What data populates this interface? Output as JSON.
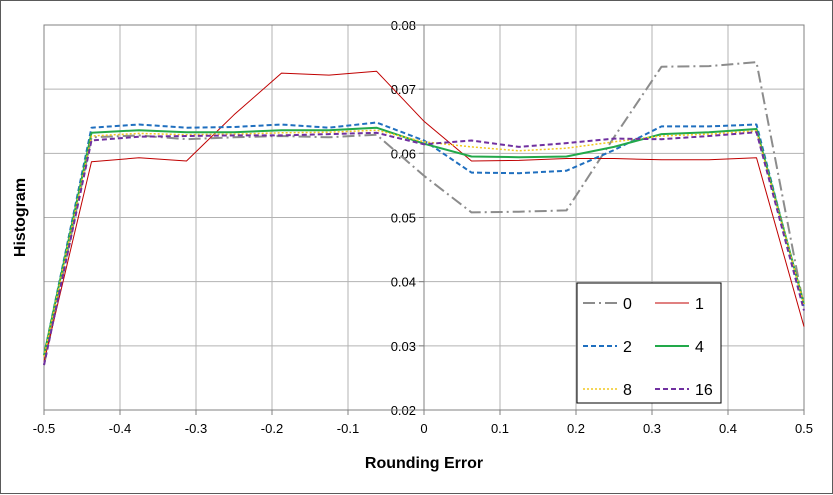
{
  "chart_data": {
    "type": "line",
    "title": "",
    "xlabel": "Rounding Error",
    "ylabel": "Histogram",
    "xlim": [
      -0.5,
      0.5
    ],
    "ylim": [
      0.02,
      0.08
    ],
    "x_ticks": [
      "-0.5",
      "-0.4",
      "-0.3",
      "-0.2",
      "-0.1",
      "0",
      "0.1",
      "0.2",
      "0.3",
      "0.4",
      "0.5"
    ],
    "y_ticks": [
      "0.02",
      "0.03",
      "0.04",
      "0.05",
      "0.06",
      "0.07",
      "0.08"
    ],
    "grid": true,
    "legend_position": "bottom-right",
    "x": [
      -0.5,
      -0.4375,
      -0.375,
      -0.3125,
      -0.25,
      -0.1875,
      -0.125,
      -0.0625,
      0.0,
      0.0625,
      0.125,
      0.1875,
      0.25,
      0.3125,
      0.375,
      0.4375,
      0.5
    ],
    "series": [
      {
        "name": "0",
        "color": "#8c8c8c",
        "style": "dashdot",
        "values": [
          0.027,
          0.0625,
          0.0628,
          0.0622,
          0.0625,
          0.0627,
          0.0625,
          0.0629,
          0.0565,
          0.0508,
          0.0509,
          0.0511,
          0.0625,
          0.0735,
          0.0736,
          0.0742,
          0.036
        ]
      },
      {
        "name": "1",
        "color": "#c00000",
        "style": "solid-thin",
        "values": [
          0.0275,
          0.0587,
          0.0593,
          0.0588,
          0.066,
          0.0725,
          0.0722,
          0.0728,
          0.065,
          0.0588,
          0.0589,
          0.0592,
          0.0592,
          0.059,
          0.059,
          0.0593,
          0.033
        ]
      },
      {
        "name": "2",
        "color": "#1f6fbf",
        "style": "dashed",
        "values": [
          0.0285,
          0.064,
          0.0645,
          0.064,
          0.0641,
          0.0645,
          0.064,
          0.0648,
          0.062,
          0.057,
          0.0569,
          0.0573,
          0.0605,
          0.0642,
          0.0642,
          0.0645,
          0.036
        ]
      },
      {
        "name": "4",
        "color": "#22a94a",
        "style": "solid",
        "values": [
          0.0285,
          0.0632,
          0.0636,
          0.0633,
          0.0633,
          0.0636,
          0.0636,
          0.064,
          0.0615,
          0.0595,
          0.0594,
          0.0595,
          0.061,
          0.063,
          0.0633,
          0.0638,
          0.0365
        ]
      },
      {
        "name": "8",
        "color": "#f2c81e",
        "style": "dotted",
        "values": [
          0.0283,
          0.0627,
          0.0631,
          0.0629,
          0.063,
          0.0632,
          0.0633,
          0.0636,
          0.0618,
          0.061,
          0.0604,
          0.0608,
          0.0618,
          0.0627,
          0.063,
          0.0635,
          0.0365
        ]
      },
      {
        "name": "16",
        "color": "#7030a0",
        "style": "dashed",
        "values": [
          0.027,
          0.062,
          0.0626,
          0.0627,
          0.0628,
          0.0628,
          0.063,
          0.0632,
          0.0614,
          0.062,
          0.061,
          0.0616,
          0.0623,
          0.0622,
          0.0627,
          0.0633,
          0.0355
        ]
      }
    ]
  }
}
